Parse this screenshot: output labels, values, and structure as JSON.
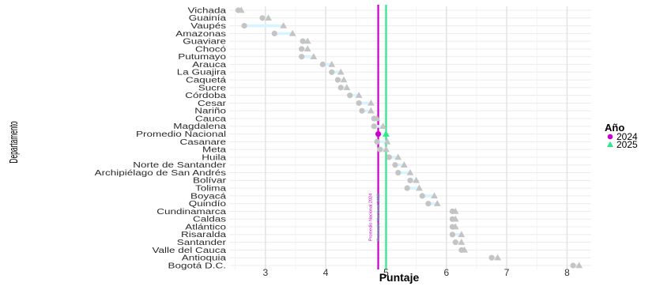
{
  "chart_data": {
    "type": "dumbbell",
    "title": "",
    "xlabel": "Puntaje",
    "ylabel": "Departamento",
    "xlim": [
      2.4,
      8.4
    ],
    "xticks": [
      3,
      4,
      5,
      6,
      7,
      8
    ],
    "grid": true,
    "legend": {
      "title": "Año",
      "position": "right",
      "entries": [
        {
          "label": "2024",
          "color": "#cc00cc",
          "shape": "circle"
        },
        {
          "label": "2025",
          "color": "#2ee88a",
          "shape": "triangle"
        }
      ]
    },
    "highlight_category": "Promedio Nacional",
    "reference_lines": [
      {
        "label": "Promedio Nacional 2024",
        "value": 4.87,
        "color": "#cc00cc"
      },
      {
        "label": "Promedio Nacional 2025",
        "value": 5.0,
        "color": "#2ee88a"
      }
    ],
    "categories": [
      "Vichada",
      "Guainía",
      "Vaupés",
      "Amazonas",
      "Guaviare",
      "Chocó",
      "Putumayo",
      "Arauca",
      "La Guajira",
      "Caquetá",
      "Sucre",
      "Córdoba",
      "Cesar",
      "Nariño",
      "Cauca",
      "Magdalena",
      "Promedio Nacional",
      "Casanare",
      "Meta",
      "Huila",
      "Norte de Santander",
      "Archipiélago de San Andrés",
      "Bolívar",
      "Tolima",
      "Boyacá",
      "Quindío",
      "Cundinamarca",
      "Caldas",
      "Atlántico",
      "Risaralda",
      "Santander",
      "Valle del Cauca",
      "Antioquia",
      "Bogotá D.C."
    ],
    "series": [
      {
        "name": "2024",
        "values": [
          2.55,
          2.95,
          2.65,
          3.15,
          3.62,
          3.6,
          3.6,
          3.95,
          4.1,
          4.2,
          4.25,
          4.4,
          4.55,
          4.6,
          4.8,
          4.8,
          4.87,
          4.85,
          4.9,
          5.05,
          5.15,
          5.2,
          5.4,
          5.35,
          5.6,
          5.7,
          6.1,
          6.1,
          6.1,
          6.1,
          6.15,
          6.25,
          6.75,
          8.1
        ]
      },
      {
        "name": "2025",
        "values": [
          2.6,
          3.05,
          3.3,
          3.45,
          3.7,
          3.7,
          3.8,
          4.1,
          4.25,
          4.3,
          4.35,
          4.55,
          4.75,
          4.75,
          4.85,
          4.95,
          5.0,
          5.02,
          5.0,
          5.2,
          5.3,
          5.4,
          5.5,
          5.55,
          5.8,
          5.85,
          6.15,
          6.15,
          6.15,
          6.25,
          6.25,
          6.3,
          6.85,
          8.2
        ]
      }
    ]
  }
}
